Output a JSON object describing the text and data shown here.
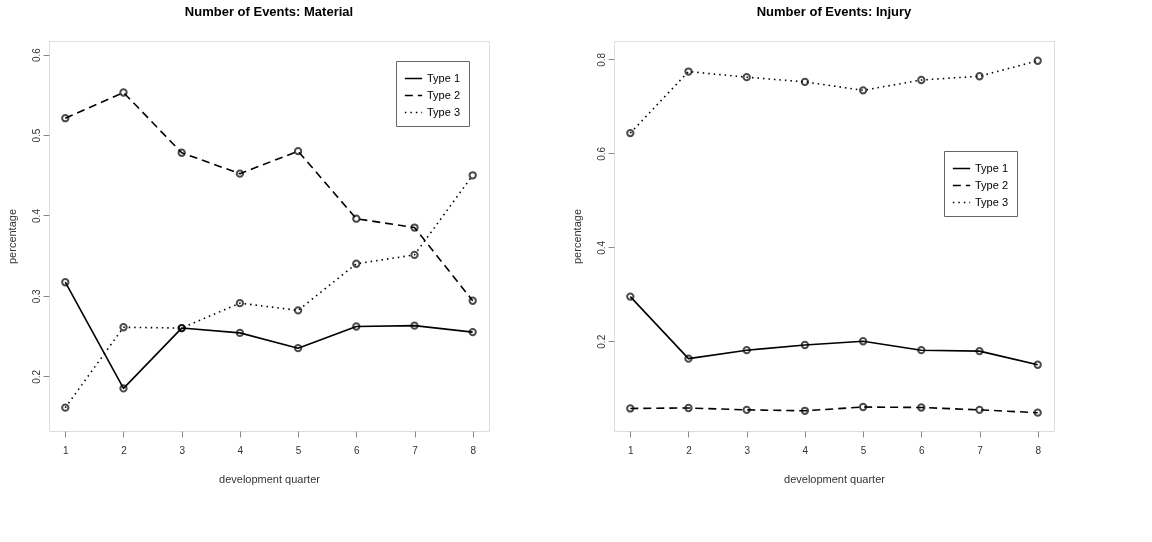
{
  "chart_data": [
    {
      "type": "line",
      "title": "Number of Events: Material",
      "xlabel": "development quarter",
      "ylabel": "percentage",
      "x": [
        1,
        2,
        3,
        4,
        5,
        6,
        7,
        8
      ],
      "xlim": [
        0.72,
        8.28
      ],
      "xticks": [
        1,
        2,
        3,
        4,
        5,
        6,
        7,
        8
      ],
      "ylim": [
        0.132,
        0.617
      ],
      "yticks": [
        0.2,
        0.3,
        0.4,
        0.5,
        0.6
      ],
      "grid": false,
      "legend": "top right",
      "marker": "circle",
      "series": [
        {
          "name": "Type 1",
          "color": "#000000",
          "line_style": "solid",
          "values": [
            0.317,
            0.185,
            0.26,
            0.254,
            0.235,
            0.262,
            0.263,
            0.255
          ]
        },
        {
          "name": "Type 2",
          "color": "#000000",
          "line_style": "dashed",
          "values": [
            0.521,
            0.553,
            0.478,
            0.452,
            0.48,
            0.396,
            0.385,
            0.294
          ]
        },
        {
          "name": "Type 3",
          "color": "#000000",
          "line_style": "dotted",
          "values": [
            0.161,
            0.261,
            0.26,
            0.291,
            0.282,
            0.34,
            0.351,
            0.45
          ]
        }
      ]
    },
    {
      "type": "line",
      "title": "Number of Events: Injury",
      "xlabel": "development quarter",
      "ylabel": "percentage",
      "x": [
        1,
        2,
        3,
        4,
        5,
        6,
        7,
        8
      ],
      "xlim": [
        0.72,
        8.28
      ],
      "xticks": [
        1,
        2,
        3,
        4,
        5,
        6,
        7,
        8
      ],
      "ylim": [
        0.009,
        0.839
      ],
      "yticks": [
        0.2,
        0.4,
        0.6,
        0.8
      ],
      "grid": false,
      "legend": "right",
      "marker": "circle",
      "series": [
        {
          "name": "Type 1",
          "color": "#000000",
          "line_style": "solid",
          "values": [
            0.295,
            0.163,
            0.181,
            0.192,
            0.2,
            0.181,
            0.179,
            0.15
          ]
        },
        {
          "name": "Type 2",
          "color": "#000000",
          "line_style": "dashed",
          "values": [
            0.057,
            0.058,
            0.054,
            0.052,
            0.06,
            0.059,
            0.054,
            0.048
          ]
        },
        {
          "name": "Type 3",
          "color": "#000000",
          "line_style": "dotted",
          "values": [
            0.643,
            0.774,
            0.762,
            0.752,
            0.734,
            0.756,
            0.764,
            0.797
          ]
        }
      ]
    }
  ]
}
